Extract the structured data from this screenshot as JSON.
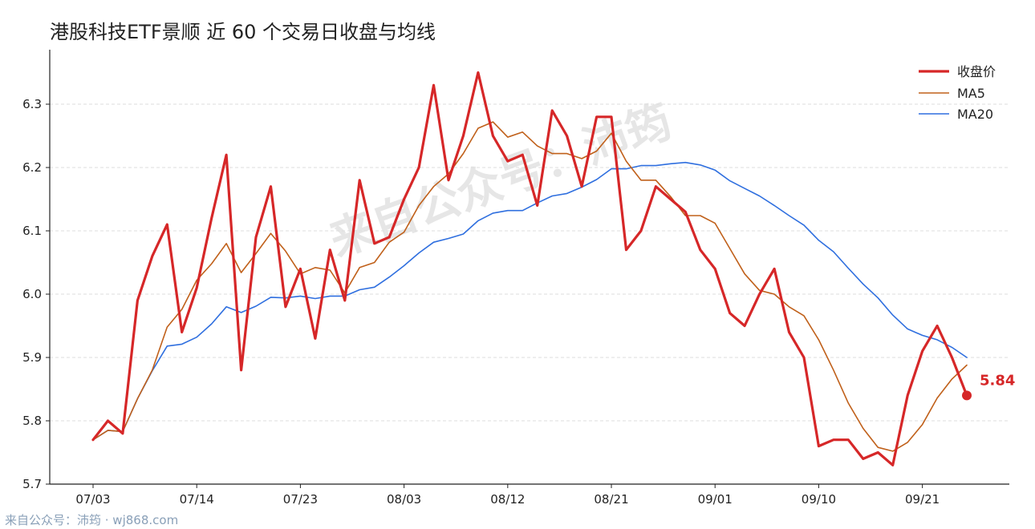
{
  "title": "港股科技ETF景顺 近 60 个交易日收盘与均线",
  "watermark": "来自公众号：沛筠",
  "footer": "来自公众号：沛筠 · wj868.com",
  "colors": {
    "close": "#d62728",
    "ma5": "#c0601a",
    "ma20": "#2f6fdf",
    "grid": "#dddddd",
    "axis": "#222222"
  },
  "chart_data": {
    "type": "line",
    "title": "港股科技ETF景顺 近 60 个交易日收盘与均线",
    "xlabel": "",
    "ylabel": "",
    "ylim": [
      5.7,
      6.36
    ],
    "y_ticks": [
      5.7,
      5.8,
      5.9,
      6.0,
      6.1,
      6.2,
      6.3
    ],
    "y_tick_labels": [
      "5.7",
      "5.8",
      "5.9",
      "6.0",
      "6.1",
      "6.2",
      "6.3"
    ],
    "x_tick_indices": [
      0,
      7,
      14,
      21,
      28,
      35,
      42,
      49,
      56
    ],
    "x_tick_labels": [
      "07/03",
      "07/14",
      "07/23",
      "08/03",
      "08/12",
      "08/21",
      "09/01",
      "09/10",
      "09/21"
    ],
    "grid": "horizontal dashed",
    "legend_position": "top-right",
    "last_value_label": "5.84",
    "series": [
      {
        "name": "收盘价",
        "values": [
          5.77,
          5.8,
          5.78,
          5.99,
          6.06,
          6.11,
          5.94,
          6.01,
          6.12,
          6.22,
          5.88,
          6.09,
          6.17,
          5.98,
          6.04,
          5.93,
          6.07,
          5.99,
          6.18,
          6.08,
          6.09,
          6.15,
          6.2,
          6.33,
          6.18,
          6.25,
          6.35,
          6.25,
          6.21,
          6.22,
          6.14,
          6.29,
          6.25,
          6.17,
          6.28,
          6.28,
          6.07,
          6.1,
          6.17,
          6.15,
          6.13,
          6.07,
          6.04,
          5.97,
          5.95,
          6.0,
          6.04,
          5.94,
          5.9,
          5.76,
          5.77,
          5.77,
          5.74,
          5.75,
          5.73,
          5.84,
          5.91,
          5.95,
          5.9,
          5.84
        ]
      },
      {
        "name": "MA5",
        "values": [
          5.77,
          5.785,
          5.783,
          5.835,
          5.88,
          5.948,
          5.976,
          6.022,
          6.048,
          6.08,
          6.034,
          6.064,
          6.096,
          6.068,
          6.032,
          6.042,
          6.038,
          6.002,
          6.042,
          6.05,
          6.082,
          6.098,
          6.14,
          6.17,
          6.19,
          6.222,
          6.262,
          6.272,
          6.248,
          6.256,
          6.234,
          6.222,
          6.222,
          6.214,
          6.226,
          6.254,
          6.21,
          6.18,
          6.18,
          6.154,
          6.124,
          6.124,
          6.112,
          6.072,
          6.032,
          6.006,
          6.0,
          5.98,
          5.966,
          5.928,
          5.88,
          5.828,
          5.788,
          5.758,
          5.752,
          5.766,
          5.794,
          5.836,
          5.866,
          5.888
        ]
      },
      {
        "name": "MA20",
        "values": [
          5.77,
          5.785,
          5.783,
          5.835,
          5.879,
          5.918,
          5.921,
          5.932,
          5.953,
          5.98,
          5.971,
          5.981,
          5.995,
          5.994,
          5.997,
          5.993,
          5.997,
          5.997,
          6.007,
          6.011,
          6.027,
          6.045,
          6.065,
          6.082,
          6.088,
          6.095,
          6.116,
          6.128,
          6.132,
          6.132,
          6.144,
          6.155,
          6.159,
          6.169,
          6.181,
          6.198,
          6.198,
          6.203,
          6.203,
          6.206,
          6.208,
          6.204,
          6.196,
          6.179,
          6.167,
          6.155,
          6.14,
          6.124,
          6.109,
          6.085,
          6.067,
          6.041,
          6.016,
          5.994,
          5.967,
          5.945,
          5.935,
          5.928,
          5.916,
          5.9
        ]
      }
    ]
  }
}
